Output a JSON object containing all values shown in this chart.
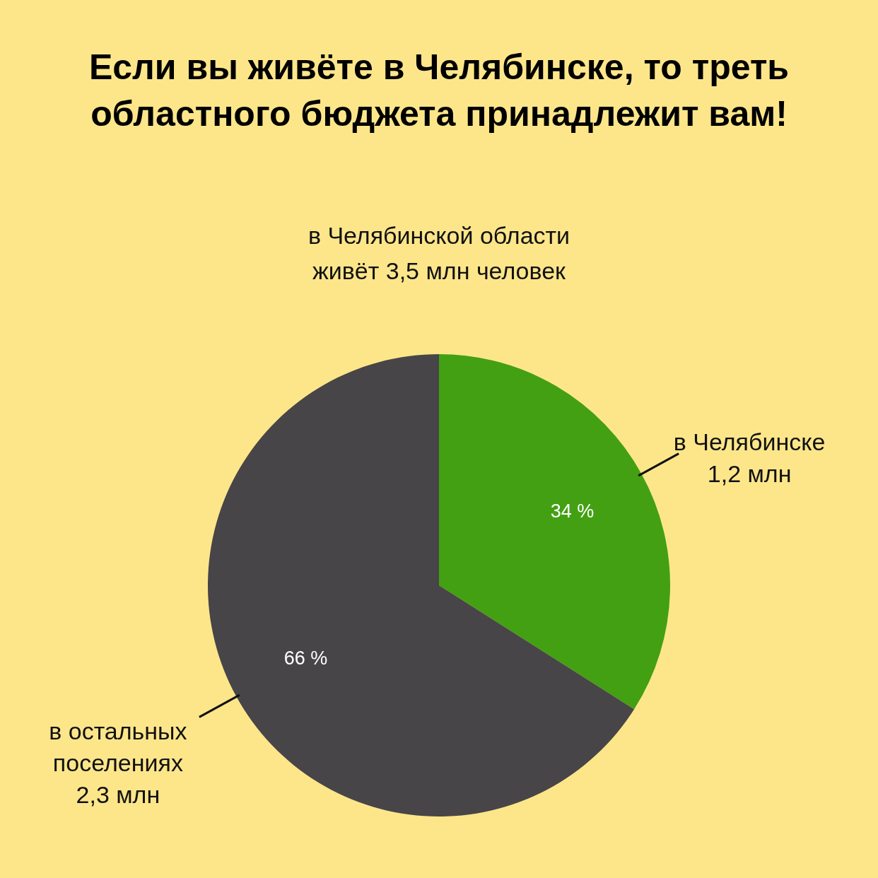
{
  "chart_data": {
    "type": "pie",
    "title": "Если вы живёте в Челябинске, то треть областного бюджета принадлежит вам!",
    "subtitle": "в Челябинской области живёт 3,5 млн человек",
    "categories": [
      "в Челябинске 1,2 млн",
      "в остальных поселениях 2,3 млн"
    ],
    "values": [
      34,
      66
    ],
    "colors": [
      "#43a012",
      "#474548"
    ],
    "value_labels": [
      "34 %",
      "66 %"
    ]
  }
}
